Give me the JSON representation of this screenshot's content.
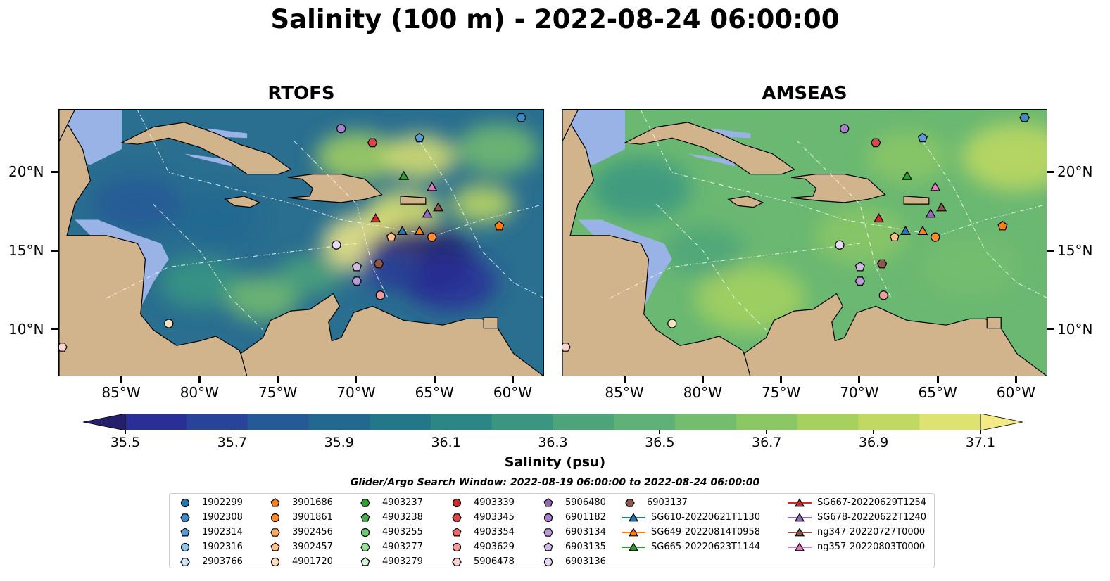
{
  "title": "Salinity (100 m) - 2022-08-24 06:00:00",
  "panels": [
    {
      "title": "RTOFS"
    },
    {
      "title": "AMSEAS"
    }
  ],
  "map_extent": {
    "lon": [
      -89,
      -58
    ],
    "lat": [
      7,
      24
    ]
  },
  "lon_ticks": [
    {
      "value": -85,
      "label": "85°W"
    },
    {
      "value": -80,
      "label": "80°W"
    },
    {
      "value": -75,
      "label": "75°W"
    },
    {
      "value": -70,
      "label": "70°W"
    },
    {
      "value": -65,
      "label": "65°W"
    },
    {
      "value": -60,
      "label": "60°W"
    }
  ],
  "lat_ticks": [
    {
      "value": 20,
      "label": "20°N"
    },
    {
      "value": 15,
      "label": "15°N"
    },
    {
      "value": 10,
      "label": "10°N"
    }
  ],
  "colorbar": {
    "title": "Salinity (psu)",
    "min": 35.5,
    "max": 37.1,
    "extend": "both",
    "ticks": [
      "35.5",
      "35.7",
      "35.9",
      "36.1",
      "36.3",
      "36.5",
      "36.7",
      "36.9",
      "37.1"
    ],
    "colors": [
      "#251e6b",
      "#2a2f98",
      "#28449a",
      "#255a97",
      "#22688f",
      "#237789",
      "#2c8685",
      "#3a9681",
      "#4da47a",
      "#5fb177",
      "#74bd6f",
      "#8cc766",
      "#a6d15f",
      "#c1d962",
      "#dde270",
      "#f4ea85"
    ]
  },
  "colors": {
    "land": "#d2b48c",
    "shallow_water": "#99b3e6",
    "ocean_rtofs": "#2a6e90",
    "ocean_amseas": "#6ab872"
  },
  "legend": {
    "title": "Glider/Argo Search Window: 2022-08-19 06:00:00 to 2022-08-24 06:00:00",
    "entries": [
      {
        "label": "1902299",
        "marker": "circle",
        "color": "#1f77b4"
      },
      {
        "label": "1902308",
        "marker": "hexagon",
        "color": "#3f88c5"
      },
      {
        "label": "1902314",
        "marker": "pentagon",
        "color": "#5b9bd5"
      },
      {
        "label": "1902316",
        "marker": "circle",
        "color": "#8ec4e8"
      },
      {
        "label": "2903766",
        "marker": "hexagon",
        "color": "#cfe6f7"
      },
      {
        "label": "3901686",
        "marker": "pentagon",
        "color": "#ff7f0e"
      },
      {
        "label": "3901861",
        "marker": "circle",
        "color": "#ff8c2a"
      },
      {
        "label": "3902456",
        "marker": "hexagon",
        "color": "#ffad66"
      },
      {
        "label": "3902457",
        "marker": "pentagon",
        "color": "#ffc38a"
      },
      {
        "label": "4901720",
        "marker": "circle",
        "color": "#ffe0bd"
      },
      {
        "label": "4903237",
        "marker": "hexagon",
        "color": "#2ca02c"
      },
      {
        "label": "4903238",
        "marker": "pentagon",
        "color": "#45b045"
      },
      {
        "label": "4903255",
        "marker": "circle",
        "color": "#6fcb6f"
      },
      {
        "label": "4903277",
        "marker": "hexagon",
        "color": "#9be09b"
      },
      {
        "label": "4903279",
        "marker": "pentagon",
        "color": "#d4f5d4"
      },
      {
        "label": "4903339",
        "marker": "circle",
        "color": "#d62728"
      },
      {
        "label": "4903345",
        "marker": "hexagon",
        "color": "#e04546"
      },
      {
        "label": "4903354",
        "marker": "pentagon",
        "color": "#ec6a6a"
      },
      {
        "label": "4903629",
        "marker": "circle",
        "color": "#f59a9a"
      },
      {
        "label": "5906478",
        "marker": "hexagon",
        "color": "#fcd2d2"
      },
      {
        "label": "5906480",
        "marker": "pentagon",
        "color": "#9467bd"
      },
      {
        "label": "6901182",
        "marker": "circle",
        "color": "#a77fcc"
      },
      {
        "label": "6903134",
        "marker": "hexagon",
        "color": "#bb99db"
      },
      {
        "label": "6903135",
        "marker": "pentagon",
        "color": "#d2b9ea"
      },
      {
        "label": "6903136",
        "marker": "circle",
        "color": "#ead9f7"
      },
      {
        "label": "6903137",
        "marker": "hexagon",
        "color": "#8c564b"
      },
      {
        "label": "SG610-20220621T1130",
        "marker": "triangle",
        "color": "#1f77b4",
        "line": true
      },
      {
        "label": "SG649-20220814T0958",
        "marker": "triangle",
        "color": "#ff7f0e",
        "line": true
      },
      {
        "label": "SG665-20220623T1144",
        "marker": "triangle",
        "color": "#2ca02c",
        "line": true
      },
      {
        "label": "SG667-20220629T1254",
        "marker": "triangle",
        "color": "#d62728",
        "line": true
      },
      {
        "label": "SG678-20220622T1240",
        "marker": "triangle",
        "color": "#9467bd",
        "line": true
      },
      {
        "label": "ng347-20220727T0000",
        "marker": "triangle",
        "color": "#8c564b",
        "line": true
      },
      {
        "label": "ng357-20220803T0000",
        "marker": "triangle",
        "color": "#e377c2",
        "line": true
      }
    ]
  },
  "observations": [
    {
      "id": "1902308",
      "lon": -59.5,
      "lat": 23.5
    },
    {
      "id": "6901182",
      "lon": -71.0,
      "lat": 22.8
    },
    {
      "id": "4903345",
      "lon": -69.0,
      "lat": 21.9
    },
    {
      "id": "1902314",
      "lon": -66.0,
      "lat": 22.2
    },
    {
      "id": "SG665-20220623T1144",
      "lon": -67.0,
      "lat": 19.8
    },
    {
      "id": "ng357-20220803T0000",
      "lon": -65.2,
      "lat": 19.1
    },
    {
      "id": "ng347-20220727T0000",
      "lon": -64.8,
      "lat": 17.8
    },
    {
      "id": "SG678-20220622T1240",
      "lon": -65.5,
      "lat": 17.4
    },
    {
      "id": "SG667-20220629T1254",
      "lon": -68.8,
      "lat": 17.1
    },
    {
      "id": "SG610-20220621T1130",
      "lon": -67.1,
      "lat": 16.3
    },
    {
      "id": "SG649-20220814T0958",
      "lon": -66.0,
      "lat": 16.3
    },
    {
      "id": "3902457",
      "lon": -67.8,
      "lat": 15.9
    },
    {
      "id": "3901861",
      "lon": -65.2,
      "lat": 15.9
    },
    {
      "id": "3901686",
      "lon": -60.9,
      "lat": 16.6
    },
    {
      "id": "6903136",
      "lon": -71.3,
      "lat": 15.4
    },
    {
      "id": "6903137",
      "lon": -68.6,
      "lat": 14.2
    },
    {
      "id": "6903135",
      "lon": -70.0,
      "lat": 14.0
    },
    {
      "id": "6903134",
      "lon": -70.0,
      "lat": 13.1
    },
    {
      "id": "4903629",
      "lon": -68.5,
      "lat": 12.2
    },
    {
      "id": "4901720",
      "lon": -82.0,
      "lat": 10.4
    },
    {
      "id": "5906478",
      "lon": -88.8,
      "lat": 8.9
    }
  ]
}
